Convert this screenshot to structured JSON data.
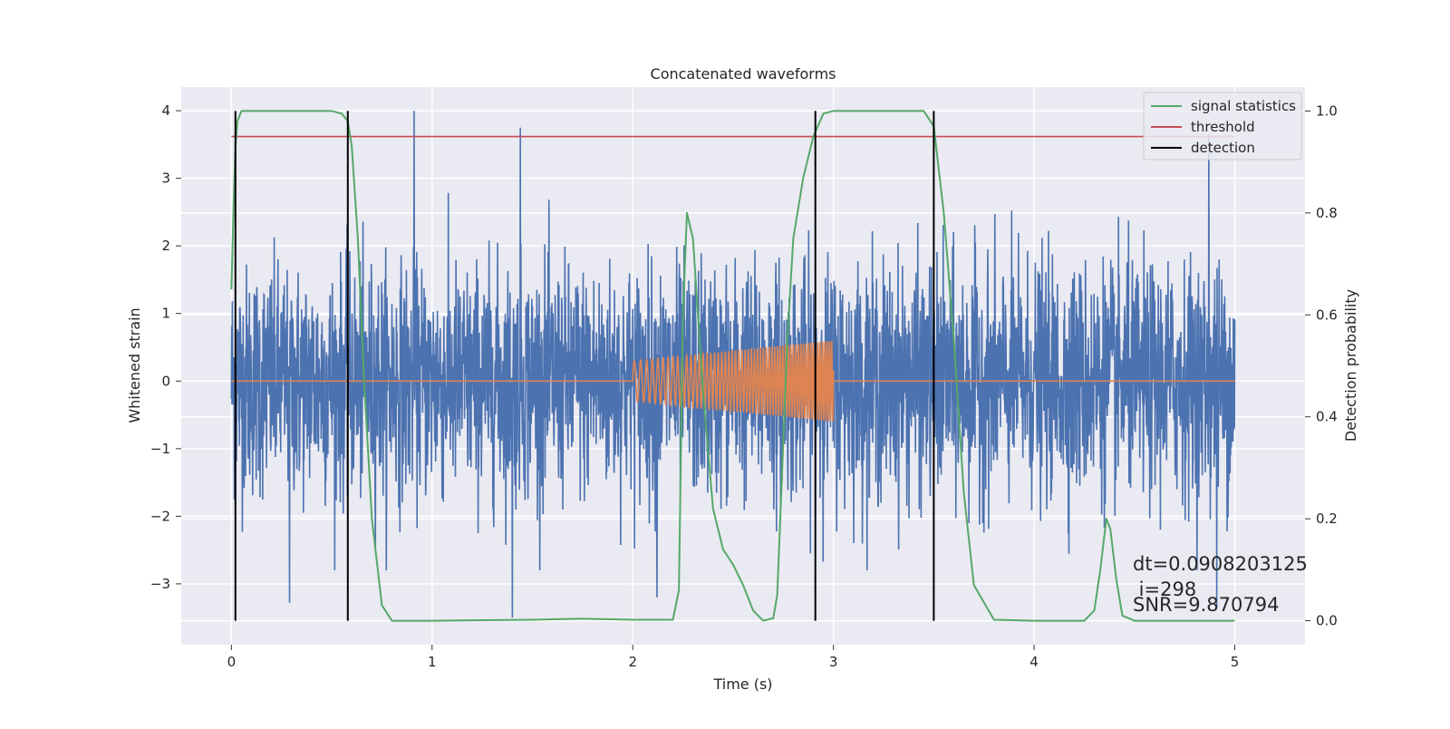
{
  "chart_data": {
    "type": "line",
    "title": "Concatenated waveforms",
    "xlabel": "Time (s)",
    "ylabel": "Whitened strain",
    "y2label": "Detection probability",
    "xlim": [
      -0.25,
      5.35
    ],
    "ylim": [
      -3.9,
      4.35
    ],
    "y2lim": [
      -0.047,
      1.047
    ],
    "x_ticks": [
      0,
      1,
      2,
      3,
      4,
      5
    ],
    "y_ticks": [
      -3,
      -2,
      -1,
      0,
      1,
      2,
      3,
      4
    ],
    "y2_ticks": [
      0.0,
      0.2,
      0.4,
      0.6,
      0.8,
      1.0
    ],
    "x_tick_labels": [
      "0",
      "1",
      "2",
      "3",
      "4",
      "5"
    ],
    "y_tick_labels": [
      "−3",
      "−2",
      "−1",
      "0",
      "1",
      "2",
      "3",
      "4"
    ],
    "y2_tick_labels": [
      "0.0",
      "0.2",
      "0.4",
      "0.6",
      "0.8",
      "1.0"
    ],
    "grid": true,
    "legend_position": "top-right",
    "colors": {
      "strain": "#4c72b0",
      "template": "#dd8452",
      "signal_statistics": "#55a868",
      "threshold": "#c44e52",
      "detection": "#000000",
      "axes_bg": "#eaeaf2",
      "grid": "#ffffff"
    },
    "series": [
      {
        "name": "signal statistics",
        "axis": "right",
        "x": [
          0.0,
          0.01,
          0.02,
          0.03,
          0.05,
          0.1,
          0.2,
          0.5,
          0.55,
          0.58,
          0.6,
          0.63,
          0.66,
          0.7,
          0.75,
          0.8,
          1.0,
          1.5,
          1.75,
          2.0,
          2.2,
          2.23,
          2.25,
          2.27,
          2.3,
          2.35,
          2.4,
          2.45,
          2.5,
          2.55,
          2.6,
          2.65,
          2.7,
          2.72,
          2.74,
          2.77,
          2.8,
          2.85,
          2.9,
          2.95,
          3.0,
          3.1,
          3.45,
          3.5,
          3.55,
          3.6,
          3.65,
          3.7,
          3.8,
          4.0,
          4.25,
          4.3,
          4.33,
          4.36,
          4.38,
          4.41,
          4.44,
          4.5,
          5.0
        ],
        "values": [
          0.65,
          0.8,
          0.93,
          0.98,
          1.0,
          1.0,
          1.0,
          1.0,
          0.995,
          0.98,
          0.93,
          0.75,
          0.48,
          0.2,
          0.03,
          0.0,
          0.0,
          0.002,
          0.004,
          0.002,
          0.002,
          0.06,
          0.6,
          0.8,
          0.75,
          0.45,
          0.22,
          0.14,
          0.11,
          0.07,
          0.02,
          0.0,
          0.005,
          0.05,
          0.25,
          0.55,
          0.75,
          0.87,
          0.95,
          0.995,
          1.0,
          1.0,
          1.0,
          0.97,
          0.8,
          0.55,
          0.25,
          0.07,
          0.002,
          0.0,
          0.0,
          0.02,
          0.1,
          0.2,
          0.18,
          0.08,
          0.01,
          0.0,
          0.0
        ]
      },
      {
        "name": "threshold",
        "axis": "right",
        "x": [
          0.0,
          5.0
        ],
        "values": [
          0.95,
          0.95
        ]
      },
      {
        "name": "detection",
        "axis": "right",
        "type": "vlines",
        "x": [
          0.02,
          0.58,
          2.91,
          3.5
        ],
        "range": [
          0.0,
          1.0
        ]
      },
      {
        "name": "",
        "axis": "left",
        "type": "chirp",
        "x_range": [
          2.0,
          3.0
        ],
        "amplitude_range": [
          0.3,
          0.6
        ],
        "baseline": 0
      },
      {
        "name": "",
        "axis": "left",
        "type": "noise",
        "x_range": [
          0.0,
          5.0
        ],
        "std": 1.0,
        "peaks": [
          {
            "x": 0.91,
            "value": 4.0
          },
          {
            "x": 1.44,
            "value": 3.75
          },
          {
            "x": 4.87,
            "value": 3.65
          },
          {
            "x": 0.29,
            "value": -3.28
          },
          {
            "x": 1.4,
            "value": -3.5
          },
          {
            "x": 2.12,
            "value": -3.2
          },
          {
            "x": 4.91,
            "value": -3.35
          }
        ]
      }
    ],
    "annotations": [
      "dt=0.0908203125",
      " i=298",
      "SNR=9.870794"
    ]
  }
}
